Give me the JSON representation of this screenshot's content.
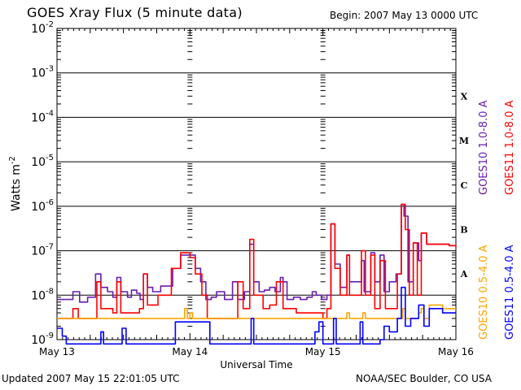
{
  "header": {
    "title": "GOES Xray Flux (5 minute data)",
    "begin": "Begin:  2007 May 13 0000 UTC"
  },
  "footer": {
    "updated": "Updated 2007 May 15 22:01:05 UTC",
    "credit": "NOAA/SEC Boulder, CO USA"
  },
  "chart_data": {
    "type": "line",
    "title": "GOES Xray Flux (5 minute data)",
    "xlabel": "Universal Time",
    "ylabel": "Watts m-2",
    "ylabel_display": {
      "base": "Watts m",
      "exponent": "-2"
    },
    "yscale": "log",
    "ylim": [
      1e-09,
      0.01
    ],
    "xlim_days": [
      0,
      3
    ],
    "x_ticks": [
      "May 13",
      "May 14",
      "May 15",
      "May 16"
    ],
    "y_ticks": [
      {
        "base": "10",
        "exponent": "-2",
        "value": 0.01
      },
      {
        "base": "10",
        "exponent": "-3",
        "value": 0.001
      },
      {
        "base": "10",
        "exponent": "-4",
        "value": 0.0001
      },
      {
        "base": "10",
        "exponent": "-5",
        "value": 1e-05
      },
      {
        "base": "10",
        "exponent": "-6",
        "value": 1e-06
      },
      {
        "base": "10",
        "exponent": "-7",
        "value": 1e-07
      },
      {
        "base": "10",
        "exponent": "-8",
        "value": 1e-08
      },
      {
        "base": "10",
        "exponent": "-9",
        "value": 1e-09
      }
    ],
    "flare_classes": [
      {
        "label": "X",
        "value": 0.0003
      },
      {
        "label": "M",
        "value": 3e-05
      },
      {
        "label": "C",
        "value": 3e-06
      },
      {
        "label": "B",
        "value": 3e-07
      },
      {
        "label": "A",
        "value": 3e-08
      }
    ],
    "legend_right": [
      "GOES11 1.0-8.0 A",
      "GOES11 0.5-4.0 A"
    ],
    "legend_left": [
      "GOES10 1.0-8.0 A",
      "GOES10 0.5-4.0 A"
    ],
    "grid": "horizontal decade lines",
    "series": [
      {
        "name": "GOES10 1.0-8.0 A",
        "color": "#6a1cb0",
        "points": [
          [
            0.0,
            8e-09
          ],
          [
            0.07,
            8e-09
          ],
          [
            0.12,
            1.2e-08
          ],
          [
            0.17,
            7e-09
          ],
          [
            0.23,
            9e-09
          ],
          [
            0.29,
            3e-08
          ],
          [
            0.33,
            1.5e-08
          ],
          [
            0.38,
            1.2e-08
          ],
          [
            0.42,
            9e-09
          ],
          [
            0.45,
            2.5e-08
          ],
          [
            0.48,
            1.2e-08
          ],
          [
            0.53,
            9e-09
          ],
          [
            0.56,
            1.3e-08
          ],
          [
            0.6,
            1.1e-08
          ],
          [
            0.625,
            8e-09
          ],
          [
            0.65,
            3e-08
          ],
          [
            0.68,
            1.5e-08
          ],
          [
            0.72,
            1.2e-08
          ],
          [
            0.78,
            1.6e-08
          ],
          [
            0.87,
            4e-08
          ],
          [
            0.93,
            8e-08
          ],
          [
            1.0,
            8e-08
          ],
          [
            1.04,
            4e-08
          ],
          [
            1.08,
            2e-08
          ],
          [
            1.12,
            8e-09
          ],
          [
            1.16,
            9e-09
          ],
          [
            1.2,
            1.2e-08
          ],
          [
            1.26,
            8e-09
          ],
          [
            1.32,
            2e-08
          ],
          [
            1.36,
            8e-09
          ],
          [
            1.41,
            1.2e-08
          ],
          [
            1.45,
            1.4e-07
          ],
          [
            1.48,
            2e-08
          ],
          [
            1.52,
            1.2e-08
          ],
          [
            1.56,
            1.3e-08
          ],
          [
            1.6,
            1.5e-08
          ],
          [
            1.64,
            1.2e-08
          ],
          [
            1.68,
            2.5e-08
          ],
          [
            1.7,
            2e-08
          ],
          [
            1.73,
            8e-09
          ],
          [
            1.78,
            9e-09
          ],
          [
            1.83,
            8e-09
          ],
          [
            1.88,
            9e-09
          ],
          [
            1.92,
            1.2e-08
          ],
          [
            1.95,
            1e-08
          ],
          [
            1.99,
            8e-09
          ],
          [
            2.03,
            1e-08
          ],
          [
            2.06,
            4e-07
          ],
          [
            2.09,
            5e-08
          ],
          [
            2.13,
            1.5e-08
          ],
          [
            2.18,
            8e-08
          ],
          [
            2.2,
            2e-08
          ],
          [
            2.25,
            2e-08
          ],
          [
            2.29,
            6e-08
          ],
          [
            2.31,
            1.2e-08
          ],
          [
            2.36,
            9e-08
          ],
          [
            2.39,
            2e-08
          ],
          [
            2.43,
            8e-08
          ],
          [
            2.46,
            1.2e-08
          ],
          [
            2.5,
            2e-08
          ],
          [
            2.55,
            3e-08
          ],
          [
            2.59,
            1.1e-06
          ],
          [
            2.61,
            6e-07
          ],
          [
            2.64,
            2e-08
          ],
          [
            2.68,
            1.5e-07
          ],
          [
            2.72,
            6e-08
          ],
          [
            2.74,
            2.5e-07
          ],
          [
            2.78,
            1.4e-07
          ],
          [
            2.86,
            1.4e-07
          ],
          [
            2.95,
            1.3e-07
          ],
          [
            3.0,
            1.3e-07
          ]
        ]
      },
      {
        "name": "GOES11 1.0-8.0 A",
        "color": "#ff0000",
        "points": [
          [
            0.0,
            3e-09
          ],
          [
            0.07,
            3e-09
          ],
          [
            0.12,
            5e-09
          ],
          [
            0.16,
            3e-09
          ],
          [
            0.27,
            3e-09
          ],
          [
            0.3,
            2e-08
          ],
          [
            0.33,
            5e-09
          ],
          [
            0.42,
            4e-09
          ],
          [
            0.45,
            2e-08
          ],
          [
            0.48,
            4e-09
          ],
          [
            0.62,
            5e-09
          ],
          [
            0.65,
            3e-08
          ],
          [
            0.68,
            6e-09
          ],
          [
            0.76,
            1e-08
          ],
          [
            0.86,
            4e-08
          ],
          [
            0.93,
            9e-08
          ],
          [
            1.0,
            7e-08
          ],
          [
            1.04,
            3e-08
          ],
          [
            1.09,
            1e-08
          ],
          [
            1.13,
            3e-09
          ],
          [
            1.33,
            3e-09
          ],
          [
            1.36,
            2e-08
          ],
          [
            1.4,
            5e-09
          ],
          [
            1.45,
            1.8e-07
          ],
          [
            1.48,
            1e-08
          ],
          [
            1.55,
            5e-09
          ],
          [
            1.6,
            6e-09
          ],
          [
            1.65,
            2e-08
          ],
          [
            1.7,
            5e-09
          ],
          [
            1.8,
            4e-09
          ],
          [
            1.95,
            4e-09
          ],
          [
            2.0,
            3e-09
          ],
          [
            2.03,
            5e-09
          ],
          [
            2.06,
            4e-07
          ],
          [
            2.09,
            4e-08
          ],
          [
            2.13,
            1e-08
          ],
          [
            2.18,
            8e-08
          ],
          [
            2.2,
            1e-08
          ],
          [
            2.26,
            1e-08
          ],
          [
            2.29,
            1e-07
          ],
          [
            2.32,
            1e-08
          ],
          [
            2.36,
            8e-08
          ],
          [
            2.39,
            5e-09
          ],
          [
            2.43,
            6e-08
          ],
          [
            2.47,
            5e-09
          ],
          [
            2.52,
            5e-09
          ],
          [
            2.56,
            3e-08
          ],
          [
            2.59,
            1.1e-06
          ],
          [
            2.62,
            3e-07
          ],
          [
            2.65,
            1e-08
          ],
          [
            2.68,
            1.5e-07
          ],
          [
            2.71,
            1e-08
          ],
          [
            2.74,
            2.5e-07
          ],
          [
            2.78,
            1.4e-07
          ],
          [
            2.86,
            1.4e-07
          ],
          [
            2.95,
            1.3e-07
          ],
          [
            3.0,
            1.2e-07
          ]
        ]
      },
      {
        "name": "GOES10 0.5-4.0 A",
        "color": "#ffa500",
        "points": [
          [
            0.0,
            3e-09
          ],
          [
            0.93,
            3e-09
          ],
          [
            0.96,
            5e-09
          ],
          [
            0.98,
            3e-09
          ],
          [
            1.0,
            4e-09
          ],
          [
            1.02,
            3e-09
          ],
          [
            2.15,
            3e-09
          ],
          [
            2.18,
            4e-09
          ],
          [
            2.2,
            3e-09
          ],
          [
            2.3,
            4e-09
          ],
          [
            2.32,
            3e-09
          ],
          [
            2.58,
            3e-09
          ],
          [
            2.6,
            5e-09
          ],
          [
            2.62,
            3e-09
          ],
          [
            2.72,
            4e-09
          ],
          [
            2.74,
            5e-09
          ],
          [
            2.76,
            3e-09
          ],
          [
            2.8,
            6e-09
          ],
          [
            2.9,
            5e-09
          ],
          [
            3.0,
            5e-09
          ]
        ]
      },
      {
        "name": "GOES11 0.5-4.0 A",
        "color": "#0000ff",
        "points": [
          [
            0.0,
            1.8e-09
          ],
          [
            0.04,
            1.2e-09
          ],
          [
            0.07,
            8e-10
          ],
          [
            0.31,
            8e-10
          ],
          [
            0.33,
            1.5e-09
          ],
          [
            0.35,
            8e-10
          ],
          [
            0.47,
            8e-10
          ],
          [
            0.49,
            1.8e-09
          ],
          [
            0.52,
            8e-10
          ],
          [
            0.86,
            8e-10
          ],
          [
            0.89,
            2.5e-09
          ],
          [
            1.12,
            2.5e-09
          ],
          [
            1.15,
            8e-10
          ],
          [
            1.44,
            8e-10
          ],
          [
            1.46,
            3e-09
          ],
          [
            1.48,
            8e-10
          ],
          [
            1.92,
            8e-10
          ],
          [
            1.94,
            1.5e-09
          ],
          [
            1.97,
            2.5e-09
          ],
          [
            2.0,
            8e-10
          ],
          [
            2.06,
            8e-10
          ],
          [
            2.08,
            3e-09
          ],
          [
            2.1,
            8e-10
          ],
          [
            2.2,
            8e-10
          ],
          [
            2.28,
            2.5e-09
          ],
          [
            2.3,
            8e-10
          ],
          [
            2.43,
            1e-09
          ],
          [
            2.46,
            2e-09
          ],
          [
            2.5,
            1.5e-09
          ],
          [
            2.56,
            3e-09
          ],
          [
            2.59,
            1.5e-08
          ],
          [
            2.62,
            2e-09
          ],
          [
            2.66,
            3e-09
          ],
          [
            2.72,
            6e-09
          ],
          [
            2.76,
            2e-09
          ],
          [
            2.8,
            5e-09
          ],
          [
            2.9,
            4e-09
          ],
          [
            3.0,
            4e-09
          ]
        ]
      }
    ]
  }
}
